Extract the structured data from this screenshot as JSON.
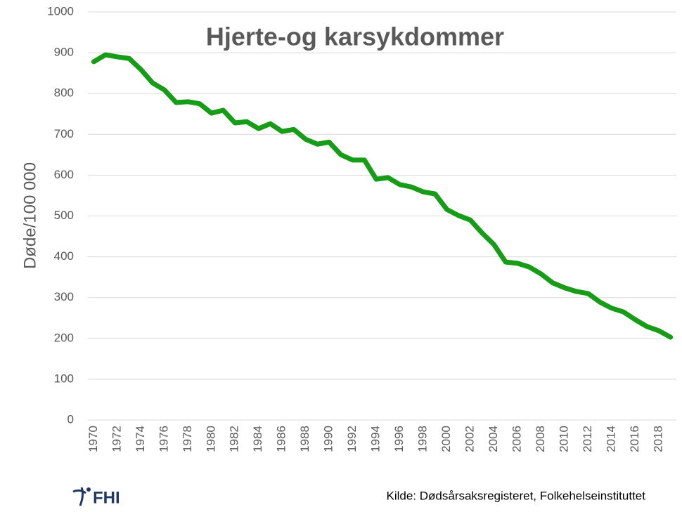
{
  "chart_data": {
    "type": "line",
    "title": "Hjerte-og karsykdommer",
    "y_label": "Døde/100 000",
    "source": "Kilde: Dødsårsaksregisteret, Folkehelseinstituttet",
    "logo": "FHI",
    "categories": [
      "1970",
      null,
      "1972",
      null,
      "1974",
      null,
      "1976",
      null,
      "1978",
      null,
      "1980",
      null,
      "1982",
      null,
      "1984",
      null,
      "1986",
      null,
      "1988",
      null,
      "1990",
      null,
      "1992",
      null,
      "1994",
      null,
      "1996",
      null,
      "1998",
      null,
      "2000",
      null,
      "2002",
      null,
      "2004",
      null,
      "2006",
      null,
      "2008",
      null,
      "2010",
      null,
      "2012",
      null,
      "2014",
      null,
      "2016",
      null,
      "2018",
      null
    ],
    "values": [
      878,
      895,
      890,
      886,
      859,
      826,
      809,
      778,
      780,
      775,
      752,
      759,
      728,
      731,
      714,
      726,
      707,
      712,
      688,
      676,
      681,
      650,
      637,
      637,
      590,
      594,
      577,
      571,
      559,
      554,
      516,
      501,
      490,
      458,
      430,
      387,
      384,
      375,
      358,
      336,
      324,
      315,
      310,
      289,
      274,
      265,
      246,
      229,
      219,
      203
    ],
    "color": "#179c17",
    "ylim": [
      0,
      1000
    ],
    "yticks": [
      0,
      100,
      200,
      300,
      400,
      500,
      600,
      700,
      800,
      900,
      1000
    ],
    "grid": true
  }
}
